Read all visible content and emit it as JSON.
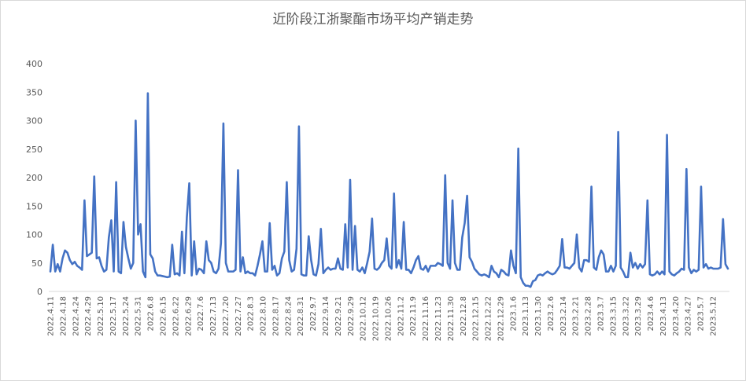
{
  "chart_data": {
    "type": "line",
    "title": "近阶段江浙聚酯市场平均产销走势",
    "xlabel": "",
    "ylabel": "",
    "ylim": [
      0,
      400
    ],
    "yticks": [
      0,
      50,
      100,
      150,
      200,
      250,
      300,
      350,
      400
    ],
    "grid": false,
    "legend": "none",
    "line_color": "#4472C4",
    "x_tick_labels": [
      "2022.4.11",
      "2022.4.18",
      "2022.4.24",
      "2022.4.29",
      "2022.5.10",
      "2022.5.17",
      "2022.5.24",
      "2022.5.31",
      "2022.6.8",
      "2022.6.15",
      "2022.6.22",
      "2022.6.29",
      "2022.7.6",
      "2022.7.13",
      "2022.7.20",
      "2022.7.27",
      "2022.8.3",
      "2022.8.10",
      "2022.8.17",
      "2022.8.24",
      "2022.8.31",
      "2022.9.7",
      "2022.9.14",
      "2022.9.21",
      "2022.9.29",
      "2022.10.12",
      "2022.10.19",
      "2022.10.26",
      "2022.11.2",
      "2022.11.9",
      "2022.11.16",
      "2022.11.23",
      "2022.11.30",
      "2022.12.8",
      "2022.12.15",
      "2022.12.22",
      "2022.12.29",
      "2023.1.6",
      "2023.1.13",
      "2023.1.30",
      "2023.2.6",
      "2023.2.14",
      "2023.2.21",
      "2023.2.28",
      "2023.3.7",
      "2023.3.15",
      "2023.3.22",
      "2023.3.29",
      "2023.4.6",
      "2023.4.13",
      "2023.4.20",
      "2023.4.27",
      "2023.5.7",
      "2023.5.12"
    ],
    "values": [
      35,
      82,
      35,
      48,
      35,
      58,
      72,
      68,
      55,
      48,
      52,
      45,
      42,
      38,
      160,
      62,
      65,
      68,
      202,
      58,
      60,
      45,
      35,
      38,
      95,
      125,
      35,
      192,
      35,
      32,
      122,
      78,
      58,
      40,
      50,
      300,
      100,
      118,
      35,
      25,
      348,
      65,
      58,
      35,
      28,
      28,
      27,
      26,
      25,
      26,
      82,
      30,
      32,
      28,
      105,
      32,
      130,
      190,
      28,
      88,
      30,
      40,
      38,
      32,
      88,
      55,
      50,
      35,
      32,
      40,
      85,
      295,
      50,
      35,
      35,
      35,
      38,
      213,
      35,
      60,
      32,
      35,
      32,
      32,
      28,
      45,
      65,
      88,
      35,
      35,
      120,
      38,
      45,
      28,
      32,
      58,
      70,
      192,
      55,
      35,
      38,
      75,
      290,
      30,
      28,
      28,
      97,
      55,
      30,
      28,
      48,
      110,
      32,
      38,
      42,
      38,
      40,
      40,
      58,
      40,
      38,
      118,
      42,
      196,
      38,
      115,
      38,
      35,
      42,
      32,
      50,
      70,
      128,
      40,
      38,
      42,
      50,
      55,
      93,
      45,
      40,
      172,
      42,
      55,
      40,
      122,
      38,
      38,
      32,
      42,
      55,
      62,
      40,
      38,
      45,
      35,
      45,
      45,
      45,
      50,
      48,
      45,
      204,
      50,
      40,
      160,
      50,
      38,
      38,
      95,
      120,
      168,
      60,
      52,
      40,
      35,
      30,
      28,
      30,
      28,
      25,
      45,
      35,
      32,
      25,
      38,
      35,
      30,
      28,
      72,
      45,
      32,
      251,
      25,
      15,
      10,
      10,
      8,
      18,
      20,
      28,
      30,
      28,
      32,
      35,
      32,
      30,
      32,
      38,
      45,
      92,
      42,
      42,
      40,
      45,
      50,
      100,
      42,
      35,
      55,
      55,
      52,
      184,
      42,
      38,
      60,
      72,
      65,
      35,
      35,
      45,
      35,
      45,
      280,
      42,
      35,
      25,
      25,
      68,
      42,
      50,
      40,
      48,
      42,
      48,
      160,
      30,
      28,
      30,
      35,
      30,
      35,
      30,
      275,
      35,
      30,
      28,
      32,
      35,
      40,
      38,
      215,
      42,
      32,
      38,
      35,
      38,
      184,
      42,
      48,
      40,
      42,
      40,
      40,
      40,
      42,
      127,
      48,
      40
    ]
  }
}
